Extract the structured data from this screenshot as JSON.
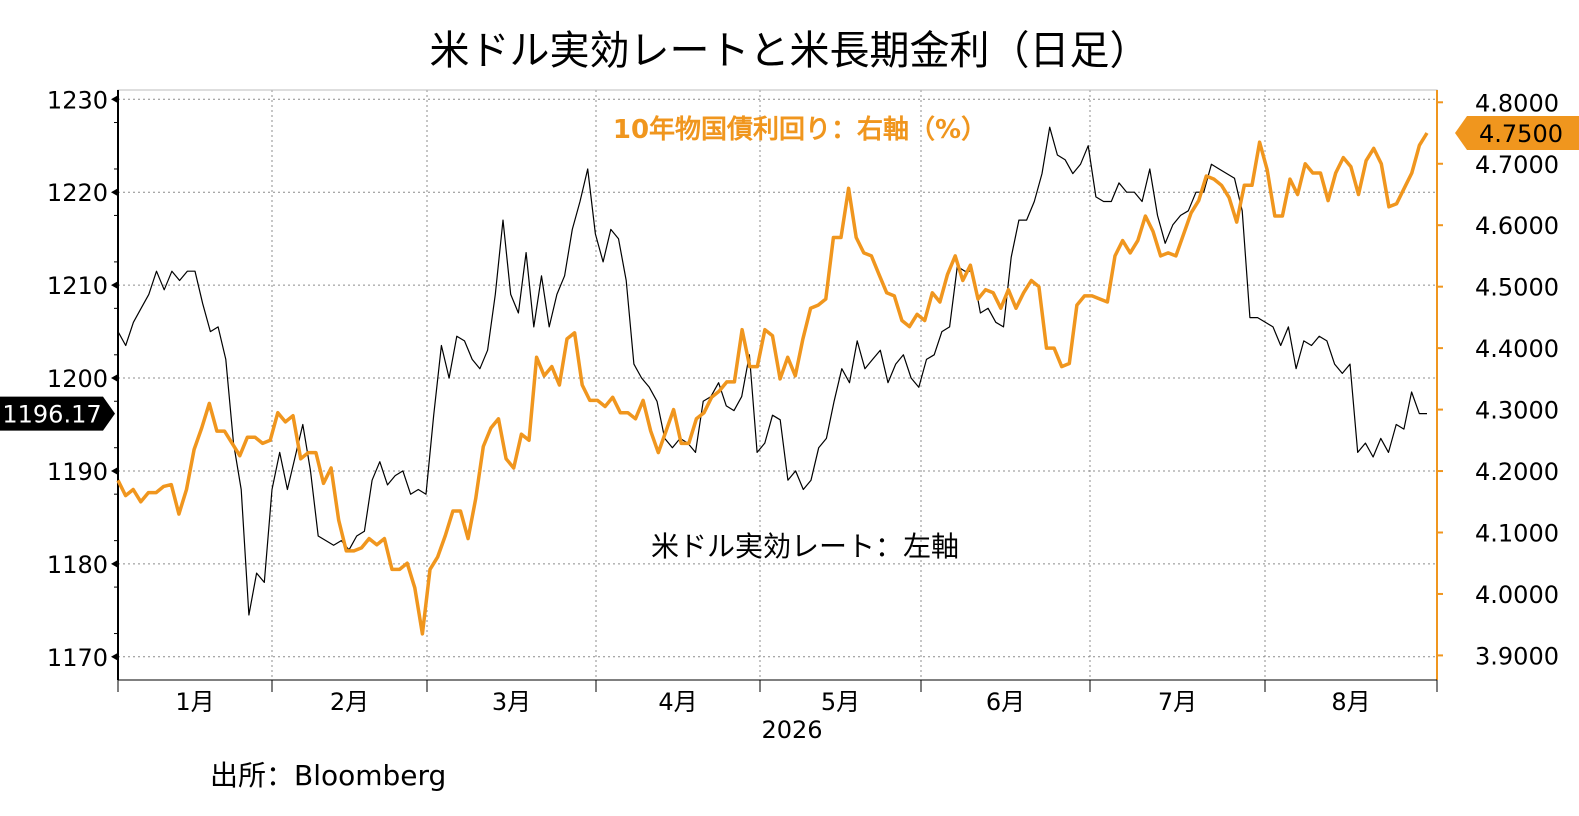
{
  "title": "米ドル実効レートと米長期金利（日足）",
  "source": "出所：Bloomberg",
  "colors": {
    "usd": "#000000",
    "yield": "#F0961E",
    "grid": "#8c8c8c"
  },
  "chart_data": {
    "type": "line",
    "x_labels": [
      "1月",
      "2月",
      "3月",
      "4月",
      "5月",
      "6月",
      "7月",
      "8月"
    ],
    "x_year": "2026",
    "left_axis": {
      "ticks": [
        "1170",
        "1180",
        "1190",
        "1200",
        "1210",
        "1220",
        "1230"
      ],
      "range": [
        1167.5,
        1231
      ]
    },
    "right_axis": {
      "ticks": [
        "3.9000",
        "4.0000",
        "4.1000",
        "4.2000",
        "4.3000",
        "4.4000",
        "4.5000",
        "4.6000",
        "4.7000",
        "4.8000"
      ],
      "range": [
        3.86,
        4.82
      ]
    },
    "last_left_label": "1196.17",
    "last_right_label": "4.7500",
    "series": [
      {
        "name": "米ドル実効レート：左軸",
        "axis": "left",
        "values": [
          1205,
          1203.5,
          1206,
          1207.5,
          1209,
          1211.5,
          1209.5,
          1211.5,
          1210.5,
          1211.5,
          1211.5,
          1208,
          1205,
          1205.5,
          1202,
          1193,
          1188,
          1174.5,
          1179,
          1178,
          1188,
          1192,
          1188,
          1191.5,
          1195,
          1190,
          1183,
          1182.5,
          1182,
          1182.5,
          1181.5,
          1183,
          1183.5,
          1189,
          1191,
          1188.5,
          1189.5,
          1190,
          1187.5,
          1188,
          1187.5,
          1196,
          1203.5,
          1200,
          1204.5,
          1204,
          1202,
          1201,
          1203,
          1209,
          1217,
          1209,
          1207,
          1213.5,
          1205.5,
          1211,
          1205.5,
          1209,
          1211,
          1216,
          1219,
          1222.5,
          1215.5,
          1212.5,
          1216,
          1215,
          1210.5,
          1201.5,
          1200,
          1199,
          1197.5,
          1193.5,
          1192.5,
          1193.5,
          1193,
          1192,
          1197.5,
          1198,
          1199.5,
          1197,
          1196.5,
          1198,
          1202.5,
          1192,
          1193,
          1196,
          1195.5,
          1189,
          1190,
          1188,
          1189,
          1192.5,
          1193.5,
          1197.5,
          1201,
          1199.5,
          1204,
          1201,
          1202,
          1203,
          1199.5,
          1201.5,
          1202.5,
          1200,
          1199,
          1202,
          1202.5,
          1205,
          1205.5,
          1212,
          1211.5,
          1211.5,
          1207,
          1207.5,
          1206,
          1205.5,
          1213,
          1217,
          1217,
          1219,
          1222,
          1227,
          1224,
          1223.5,
          1222,
          1223,
          1225,
          1219.5,
          1219,
          1219,
          1221,
          1220,
          1220,
          1219,
          1222.5,
          1217.5,
          1214.5,
          1216.5,
          1217.5,
          1218,
          1220,
          1220,
          1223,
          1222.5,
          1222,
          1221.5,
          1218,
          1206.5,
          1206.5,
          1206,
          1205.5,
          1203.5,
          1205.5,
          1201,
          1204,
          1203.5,
          1204.5,
          1204,
          1201.5,
          1200.5,
          1201.5,
          1192,
          1193,
          1191.5,
          1193.5,
          1192,
          1195,
          1194.5,
          1198.5,
          1196.17,
          1196.17
        ]
      },
      {
        "name": "10年物国債利回り：右軸（%）",
        "axis": "right",
        "values": [
          4.185,
          4.16,
          4.17,
          4.15,
          4.165,
          4.165,
          4.175,
          4.178,
          4.13,
          4.17,
          4.235,
          4.27,
          4.31,
          4.265,
          4.265,
          4.245,
          4.225,
          4.255,
          4.255,
          4.245,
          4.25,
          4.295,
          4.28,
          4.29,
          4.22,
          4.23,
          4.23,
          4.18,
          4.205,
          4.12,
          4.07,
          4.07,
          4.075,
          4.09,
          4.08,
          4.09,
          4.04,
          4.04,
          4.05,
          4.01,
          3.935,
          4.04,
          4.06,
          4.095,
          4.135,
          4.135,
          4.09,
          4.155,
          4.24,
          4.27,
          4.285,
          4.22,
          4.205,
          4.26,
          4.25,
          4.385,
          4.355,
          4.37,
          4.34,
          4.415,
          4.425,
          4.34,
          4.315,
          4.315,
          4.305,
          4.32,
          4.295,
          4.295,
          4.285,
          4.315,
          4.265,
          4.23,
          4.265,
          4.3,
          4.245,
          4.245,
          4.285,
          4.295,
          4.32,
          4.33,
          4.345,
          4.345,
          4.43,
          4.37,
          4.37,
          4.43,
          4.42,
          4.35,
          4.385,
          4.355,
          4.415,
          4.465,
          4.47,
          4.48,
          4.58,
          4.58,
          4.66,
          4.58,
          4.555,
          4.55,
          4.52,
          4.49,
          4.485,
          4.445,
          4.435,
          4.455,
          4.445,
          4.49,
          4.475,
          4.52,
          4.55,
          4.51,
          4.535,
          4.48,
          4.495,
          4.49,
          4.465,
          4.495,
          4.465,
          4.49,
          4.51,
          4.5,
          4.4,
          4.4,
          4.37,
          4.375,
          4.47,
          4.485,
          4.485,
          4.48,
          4.475,
          4.55,
          4.575,
          4.555,
          4.575,
          4.615,
          4.59,
          4.55,
          4.555,
          4.55,
          4.585,
          4.62,
          4.64,
          4.68,
          4.675,
          4.665,
          4.645,
          4.605,
          4.665,
          4.665,
          4.735,
          4.69,
          4.615,
          4.615,
          4.675,
          4.65,
          4.7,
          4.685,
          4.685,
          4.64,
          4.685,
          4.71,
          4.695,
          4.65,
          4.705,
          4.725,
          4.7,
          4.63,
          4.635,
          4.66,
          4.685,
          4.73,
          4.75
        ]
      }
    ],
    "annotations": [
      "10年物国債利回り：右軸（%）",
      "米ドル実効レート：左軸"
    ],
    "grid": true,
    "legend": "none"
  }
}
